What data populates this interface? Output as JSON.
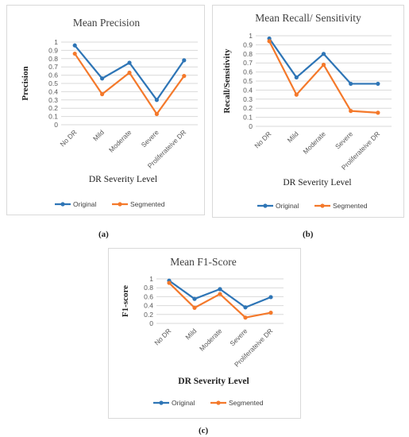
{
  "colors": {
    "original": "#2E75B6",
    "segmented": "#F4792B",
    "grid": "#d9d9d9"
  },
  "chart_data": [
    {
      "type": "line",
      "panel_label": "(a)",
      "title": "Mean Precision",
      "xlabel": "DR Severity Level",
      "ylabel": "Precision",
      "ylim": [
        0,
        1
      ],
      "yticks": [
        "0",
        "0.1",
        "0.2",
        "0.3",
        "0.4",
        "0.5",
        "0.6",
        "0.7",
        "0.8",
        "0.9",
        "1"
      ],
      "grid": true,
      "legend": "bottom",
      "categories": [
        "No DR",
        "Mild",
        "Moderate",
        "Severe",
        "Proliferateive DR"
      ],
      "series": [
        {
          "name": "Original",
          "values": [
            0.96,
            0.56,
            0.75,
            0.3,
            0.78
          ]
        },
        {
          "name": "Segmented",
          "values": [
            0.86,
            0.37,
            0.63,
            0.13,
            0.59
          ]
        }
      ]
    },
    {
      "type": "line",
      "panel_label": "(b)",
      "title": "Mean Recall/ Sensitivity",
      "xlabel": "DR Severity Level",
      "ylabel": "Recall/Sensitivity",
      "ylim": [
        0,
        1
      ],
      "yticks": [
        "0",
        "0.1",
        "0.2",
        "0.3",
        "0.4",
        "0.5",
        "0.6",
        "0.7",
        "0.8",
        "0.9",
        "1"
      ],
      "grid": true,
      "legend": "bottom",
      "categories": [
        "No DR",
        "Mild",
        "Moderate",
        "Severe",
        "Proliferateive DR"
      ],
      "series": [
        {
          "name": "Original",
          "values": [
            0.97,
            0.54,
            0.8,
            0.47,
            0.47
          ]
        },
        {
          "name": "Segmented",
          "values": [
            0.94,
            0.35,
            0.68,
            0.17,
            0.15
          ]
        }
      ]
    },
    {
      "type": "line",
      "panel_label": "(c)",
      "title": "Mean F1-Score",
      "xlabel": "DR Severity Level",
      "ylabel": "F1-score",
      "ylim": [
        0,
        1
      ],
      "yticks": [
        "0",
        "0.2",
        "0.4",
        "0.6",
        "0.8",
        "1"
      ],
      "grid": true,
      "legend": "bottom",
      "categories": [
        "No DR",
        "Mild",
        "Moderate",
        "Severe",
        "Proliferateive DR"
      ],
      "series": [
        {
          "name": "Original",
          "values": [
            0.96,
            0.55,
            0.77,
            0.36,
            0.59
          ]
        },
        {
          "name": "Segmented",
          "values": [
            0.91,
            0.35,
            0.66,
            0.13,
            0.24
          ]
        }
      ]
    }
  ]
}
